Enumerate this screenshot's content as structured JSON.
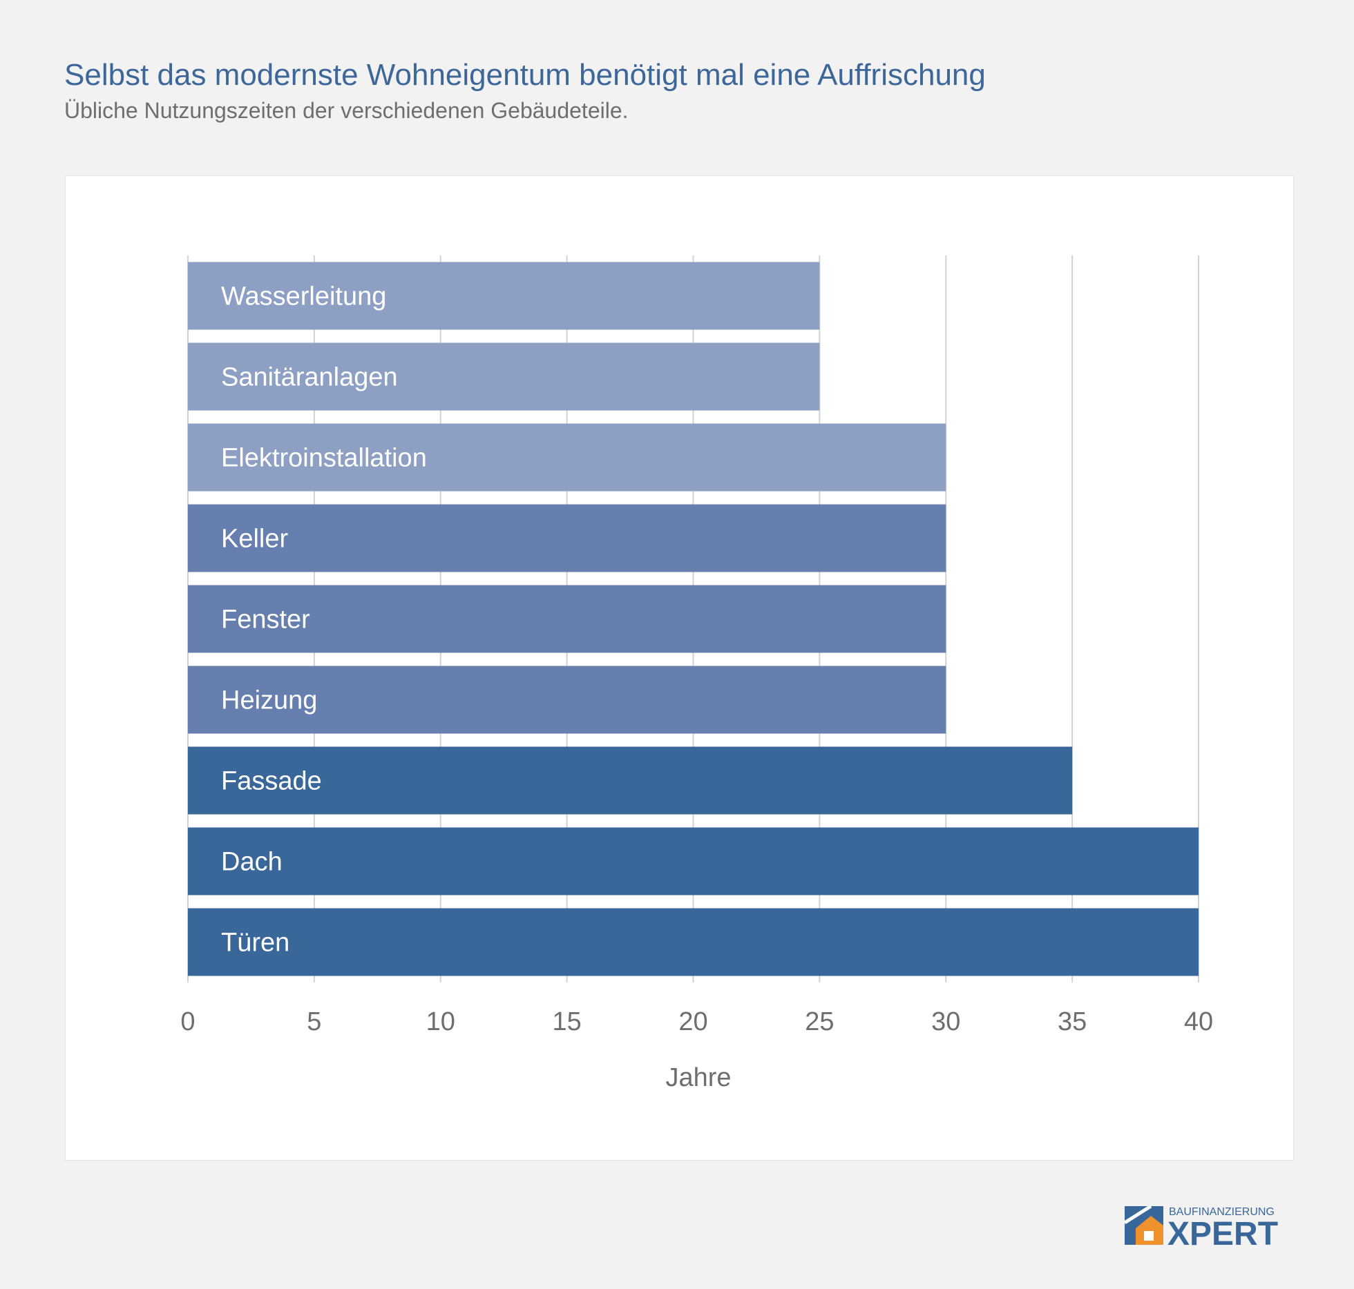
{
  "header": {
    "title": "Selbst das modernste Wohneigentum benötigt mal eine Auffrischung",
    "subtitle": "Übliche Nutzungszeiten der verschiedenen Gebäudeteile."
  },
  "chart_data": {
    "type": "bar",
    "orientation": "horizontal",
    "categories": [
      "Wasserleitung",
      "Sanitäranlagen",
      "Elektroinstallation",
      "Keller",
      "Fenster",
      "Heizung",
      "Fassade",
      "Dach",
      "Türen"
    ],
    "values": [
      25,
      25,
      30,
      30,
      30,
      30,
      35,
      40,
      40
    ],
    "title": "",
    "xlabel": "Jahre",
    "ylabel": "",
    "xlim": [
      0,
      40
    ],
    "xticks": [
      0,
      5,
      10,
      15,
      20,
      25,
      30,
      35,
      40
    ],
    "grid": true,
    "bar_colors": [
      "#8e9fc4",
      "#8e9fc4",
      "#8e9fc4",
      "#667fae",
      "#667fae",
      "#667fae",
      "#39679a",
      "#39679a",
      "#39679a"
    ],
    "label_color": "#ffffff",
    "grid_color": "#d2d2d2",
    "tick_color": "#6e6e6e"
  },
  "logo": {
    "line1": "BAUFINANZIERUNG",
    "line2": "XPERT",
    "colors": {
      "blue": "#39679a",
      "orange": "#f0922b"
    }
  }
}
